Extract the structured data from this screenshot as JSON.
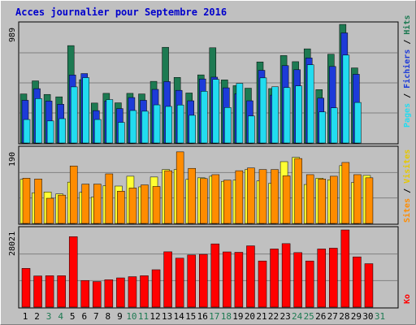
{
  "title": "Acces journalier pour Septembre 2016",
  "colors": {
    "background": "#c0c0c0",
    "panel": "#c0c0c0",
    "grid": "#808080",
    "title": "#0000cc",
    "hits": "#1d7a52",
    "files": "#1d3bd8",
    "pages": "#22dcf0",
    "visits": "#ff8c00",
    "sites": "#ffff33",
    "kb": "#ff0000",
    "day_normal": "#000000",
    "day_weekend": "#1d7a52"
  },
  "legend": {
    "pages": "Pages",
    "files": "Fichiers",
    "hits": "Hits",
    "sites": "Sites",
    "visits": "Visites",
    "kb": "Ko",
    "sep": " / "
  },
  "chart_data": [
    {
      "type": "bar",
      "name": "hits-files-pages",
      "ymax_label": "989",
      "ylim": [
        0,
        989
      ],
      "categories": [
        "1",
        "2",
        "3",
        "4",
        "5",
        "6",
        "7",
        "8",
        "9",
        "10",
        "11",
        "12",
        "13",
        "14",
        "15",
        "16",
        "17",
        "18",
        "19",
        "20",
        "21",
        "22",
        "23",
        "24",
        "25",
        "26",
        "27",
        "28",
        "29",
        "30",
        "31"
      ],
      "series": [
        {
          "name": "Hits",
          "values": [
            409,
            518,
            405,
            385,
            812,
            528,
            333,
            414,
            335,
            414,
            409,
            514,
            798,
            547,
            417,
            568,
            794,
            526,
            478,
            457,
            676,
            454,
            729,
            678,
            785,
            445,
            740,
            989,
            626,
            0,
            0
          ]
        },
        {
          "name": "Fichiers",
          "values": [
            356,
            453,
            350,
            323,
            567,
            579,
            270,
            350,
            287,
            379,
            356,
            447,
            512,
            439,
            352,
            534,
            549,
            460,
            411,
            352,
            606,
            399,
            645,
            611,
            709,
            374,
            638,
            918,
            573,
            0,
            0
          ]
        },
        {
          "name": "Pages",
          "values": [
            196,
            370,
            184,
            203,
            468,
            545,
            196,
            362,
            172,
            271,
            265,
            318,
            305,
            317,
            231,
            431,
            530,
            296,
            497,
            225,
            543,
            469,
            462,
            476,
            652,
            259,
            293,
            733,
            338,
            0,
            0
          ]
        }
      ]
    },
    {
      "type": "bar",
      "name": "visits-sites",
      "ymax_label": "190",
      "ylim": [
        0,
        190
      ],
      "categories": [
        "1",
        "2",
        "3",
        "4",
        "5",
        "6",
        "7",
        "8",
        "9",
        "10",
        "11",
        "12",
        "13",
        "14",
        "15",
        "16",
        "17",
        "18",
        "19",
        "20",
        "21",
        "22",
        "23",
        "24",
        "25",
        "26",
        "27",
        "28",
        "29",
        "30",
        "31"
      ],
      "series": [
        {
          "name": "Visites",
          "values": [
            112,
            78,
            80,
            75,
            105,
            79,
            67,
            96,
            95,
            120,
            93,
            118,
            137,
            137,
            112,
            116,
            120,
            107,
            110,
            137,
            108,
            102,
            157,
            168,
            99,
            115,
            111,
            147,
            104,
            122,
            0
          ]
        },
        {
          "name": "Sites",
          "values": [
            115,
            113,
            64,
            72,
            146,
            100,
            100,
            126,
            82,
            90,
            98,
            94,
            134,
            182,
            140,
            114,
            124,
            110,
            134,
            141,
            137,
            137,
            121,
            165,
            124,
            113,
            120,
            155,
            124,
            116,
            0
          ]
        }
      ]
    },
    {
      "type": "bar",
      "name": "kb",
      "ymax_label": "28021",
      "ylim": [
        0,
        28021
      ],
      "categories": [
        "1",
        "2",
        "3",
        "4",
        "5",
        "6",
        "7",
        "8",
        "9",
        "10",
        "11",
        "12",
        "13",
        "14",
        "15",
        "16",
        "17",
        "18",
        "19",
        "20",
        "21",
        "22",
        "23",
        "24",
        "25",
        "26",
        "27",
        "28",
        "29",
        "30",
        "31"
      ],
      "series": [
        {
          "name": "Ko",
          "values": [
            14060,
            11322,
            11403,
            11403,
            25580,
            9664,
            9277,
            9947,
            10615,
            11051,
            11403,
            13573,
            20090,
            17777,
            18932,
            19165,
            22962,
            20056,
            19909,
            22254,
            16758,
            21116,
            23051,
            19802,
            16758,
            21116,
            21410,
            28021,
            18243,
            15773,
            0
          ]
        }
      ]
    }
  ],
  "days": [
    {
      "label": "1",
      "weekend": false
    },
    {
      "label": "2",
      "weekend": false
    },
    {
      "label": "3",
      "weekend": true
    },
    {
      "label": "4",
      "weekend": true
    },
    {
      "label": "5",
      "weekend": false
    },
    {
      "label": "6",
      "weekend": false
    },
    {
      "label": "7",
      "weekend": false
    },
    {
      "label": "8",
      "weekend": false
    },
    {
      "label": "9",
      "weekend": false
    },
    {
      "label": "10",
      "weekend": true
    },
    {
      "label": "11",
      "weekend": true
    },
    {
      "label": "12",
      "weekend": false
    },
    {
      "label": "13",
      "weekend": false
    },
    {
      "label": "14",
      "weekend": false
    },
    {
      "label": "15",
      "weekend": false
    },
    {
      "label": "16",
      "weekend": false
    },
    {
      "label": "17",
      "weekend": true
    },
    {
      "label": "18",
      "weekend": true
    },
    {
      "label": "19",
      "weekend": false
    },
    {
      "label": "20",
      "weekend": false
    },
    {
      "label": "21",
      "weekend": false
    },
    {
      "label": "22",
      "weekend": false
    },
    {
      "label": "23",
      "weekend": false
    },
    {
      "label": "24",
      "weekend": true
    },
    {
      "label": "25",
      "weekend": true
    },
    {
      "label": "26",
      "weekend": false
    },
    {
      "label": "27",
      "weekend": false
    },
    {
      "label": "28",
      "weekend": false
    },
    {
      "label": "29",
      "weekend": false
    },
    {
      "label": "30",
      "weekend": false
    },
    {
      "label": "31",
      "weekend": true
    }
  ]
}
